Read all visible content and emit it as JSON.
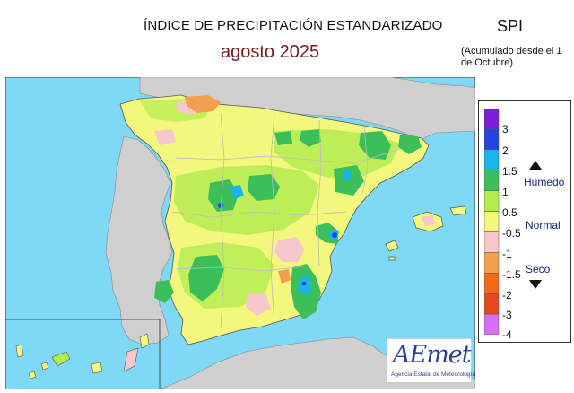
{
  "header": {
    "title": "ÍNDICE DE PRECIPITACIÓN ESTANDARIZADO",
    "period": "agosto  2025",
    "index_code": "SPI",
    "note": "(Acumulado desde el 1 de Octubre)"
  },
  "legend": {
    "ticks": [
      "3",
      "2",
      "1.5",
      "1",
      "0.5",
      "-0.5",
      "-1",
      "-1.5",
      "-2",
      "-3",
      "-4"
    ],
    "categories": [
      "Húmedo",
      "Normal",
      "Seco"
    ],
    "colors": [
      "#7a1fd6",
      "#2443e0",
      "#1ab6e8",
      "#3cbf5a",
      "#b4ec50",
      "#f4f77e",
      "#f6c8cc",
      "#f2a050",
      "#f06a1a",
      "#e8471e",
      "#d770f0"
    ]
  },
  "logo": {
    "name": "AEmet",
    "org": "Agencia Estatal de Meteorología"
  },
  "palette": {
    "sea": "#7fd8f5",
    "land_outside": "#cfcfcf",
    "normal": "#f4f77e",
    "wet": "#3cbf5a",
    "very_wet": "#1ab6e8",
    "extreme_wet": "#2443e0",
    "dry": "#f6c8cc",
    "moderately_dry": "#f2a050"
  }
}
